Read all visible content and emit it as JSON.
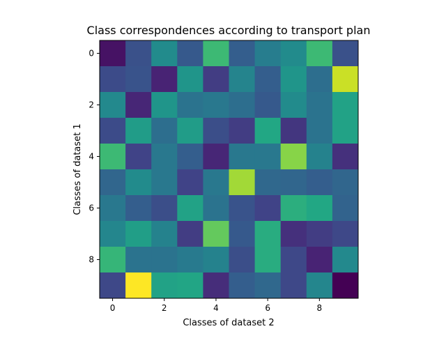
{
  "chart_data": {
    "type": "heatmap",
    "title": "Class correspondences according to transport plan",
    "xlabel": "Classes of dataset 2",
    "ylabel": "Classes of dataset 1",
    "colormap": "viridis",
    "xticks": [
      "0",
      "2",
      "4",
      "6",
      "8"
    ],
    "yticks": [
      "0",
      "2",
      "4",
      "6",
      "8"
    ],
    "rows": 10,
    "cols": 10,
    "values": [
      [
        0.05,
        0.25,
        0.48,
        0.28,
        0.68,
        0.3,
        0.42,
        0.48,
        0.68,
        0.25
      ],
      [
        0.23,
        0.26,
        0.1,
        0.52,
        0.18,
        0.45,
        0.3,
        0.52,
        0.36,
        0.92
      ],
      [
        0.47,
        0.11,
        0.52,
        0.38,
        0.4,
        0.36,
        0.28,
        0.48,
        0.38,
        0.58
      ],
      [
        0.23,
        0.55,
        0.36,
        0.55,
        0.24,
        0.18,
        0.6,
        0.16,
        0.38,
        0.58
      ],
      [
        0.68,
        0.2,
        0.4,
        0.3,
        0.11,
        0.4,
        0.4,
        0.82,
        0.44,
        0.14
      ],
      [
        0.33,
        0.48,
        0.4,
        0.2,
        0.4,
        0.86,
        0.34,
        0.33,
        0.3,
        0.33
      ],
      [
        0.4,
        0.3,
        0.24,
        0.58,
        0.38,
        0.26,
        0.2,
        0.63,
        0.6,
        0.32
      ],
      [
        0.46,
        0.56,
        0.44,
        0.18,
        0.76,
        0.28,
        0.62,
        0.14,
        0.18,
        0.22
      ],
      [
        0.66,
        0.38,
        0.38,
        0.41,
        0.44,
        0.24,
        0.62,
        0.22,
        0.1,
        0.47
      ],
      [
        0.22,
        1.0,
        0.58,
        0.59,
        0.13,
        0.3,
        0.34,
        0.22,
        0.46,
        0.0
      ]
    ]
  }
}
